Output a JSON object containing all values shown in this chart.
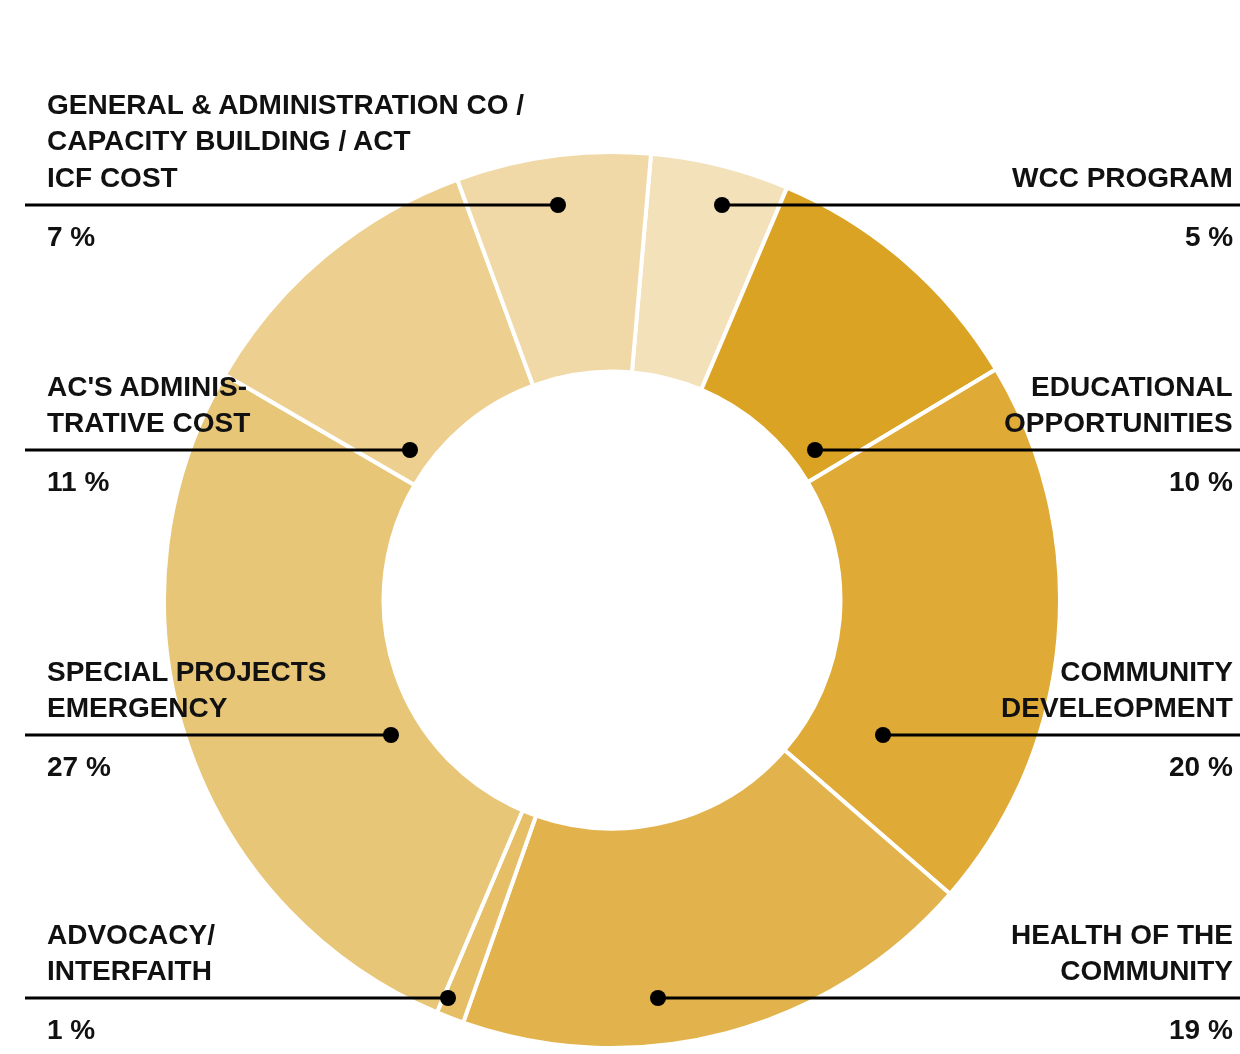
{
  "chart_data": {
    "type": "donut",
    "categories": [
      "WCC PROGRAM",
      "EDUCATIONAL\nOPPORTUNITIES",
      "COMMUNITY\nDEVELEOPMENT",
      "HEALTH OF THE\nCOMMUNITY",
      "ADVOCACY/\nINTERFAITH",
      "SPECIAL PROJECTS\nEMERGENCY",
      "AC'S ADMINIS-\nTRATIVE COST",
      "GENERAL & ADMINISTRATION CO /\nCAPACITY BUILDING / ACT\nICF COST"
    ],
    "values": [
      5,
      10,
      20,
      19,
      1,
      27,
      11,
      7
    ],
    "value_labels": [
      "5 %",
      "10 %",
      "20 %",
      "19 %",
      "1 %",
      "27 %",
      "11 %",
      "7 %"
    ],
    "colors": [
      "#f3e1b9",
      "#dba323",
      "#e0aa36",
      "#e2b34c",
      "#e6be66",
      "#e8c678",
      "#edd08f",
      "#f0d9a6"
    ],
    "legend": false
  }
}
